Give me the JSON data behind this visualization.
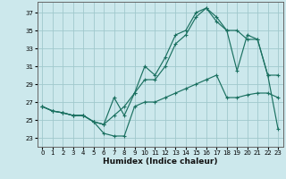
{
  "xlabel": "Humidex (Indice chaleur)",
  "bg_color": "#cce8ec",
  "grid_color": "#a0c8cc",
  "line_color": "#1a7060",
  "x_ticks": [
    0,
    1,
    2,
    3,
    4,
    5,
    6,
    7,
    8,
    9,
    10,
    11,
    12,
    13,
    14,
    15,
    16,
    17,
    18,
    19,
    20,
    21,
    22,
    23
  ],
  "y_ticks": [
    23,
    25,
    27,
    29,
    31,
    33,
    35,
    37
  ],
  "xlim": [
    -0.5,
    23.5
  ],
  "ylim": [
    22.0,
    38.2
  ],
  "line1_x": [
    0,
    1,
    2,
    3,
    4,
    5,
    6,
    7,
    8,
    9,
    10,
    11,
    12,
    13,
    14,
    15,
    16,
    17,
    18,
    19,
    20,
    21,
    22,
    23
  ],
  "line1_y": [
    26.5,
    26.0,
    25.8,
    25.5,
    25.5,
    24.8,
    23.5,
    23.2,
    23.2,
    26.5,
    27.0,
    27.0,
    27.5,
    28.0,
    28.5,
    29.0,
    29.5,
    30.0,
    27.5,
    27.5,
    27.8,
    28.0,
    28.0,
    27.5
  ],
  "line2_x": [
    0,
    1,
    2,
    3,
    4,
    5,
    6,
    7,
    8,
    9,
    10,
    11,
    12,
    13,
    14,
    15,
    16,
    17,
    18,
    19,
    20,
    21,
    22,
    23
  ],
  "line2_y": [
    26.5,
    26.0,
    25.8,
    25.5,
    25.5,
    24.8,
    24.5,
    25.5,
    26.5,
    28.0,
    29.5,
    29.5,
    31.0,
    33.5,
    34.5,
    36.5,
    37.5,
    36.0,
    35.0,
    35.0,
    34.0,
    34.0,
    30.0,
    30.0
  ],
  "line3_x": [
    0,
    1,
    2,
    3,
    4,
    5,
    6,
    7,
    8,
    9,
    10,
    11,
    12,
    13,
    14,
    15,
    16,
    17,
    18,
    19,
    20,
    21,
    22,
    23
  ],
  "line3_y": [
    26.5,
    26.0,
    25.8,
    25.5,
    25.5,
    24.8,
    24.5,
    27.5,
    25.5,
    28.0,
    31.0,
    30.0,
    32.0,
    34.5,
    35.0,
    37.0,
    37.5,
    36.5,
    35.0,
    30.5,
    34.5,
    34.0,
    30.0,
    24.0
  ]
}
